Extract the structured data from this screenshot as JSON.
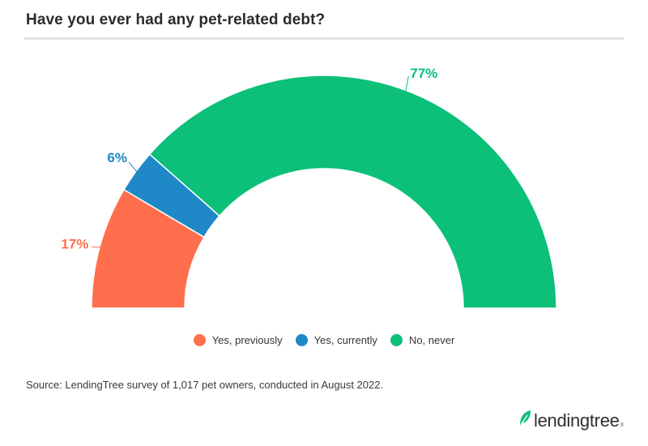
{
  "title": "Have you ever had any pet-related debt?",
  "chart_data": {
    "type": "pie",
    "subtype": "semi-donut",
    "categories": [
      "Yes, previously",
      "Yes, currently",
      "No, never"
    ],
    "values": [
      17,
      6,
      77
    ],
    "labels": [
      "17%",
      "6%",
      "77%"
    ],
    "colors": [
      "#ff6f4d",
      "#1f88c6",
      "#0cc079"
    ],
    "legend_position": "bottom-center"
  },
  "source": "Source: LendingTree survey of 1,017 pet owners, conducted in August 2022.",
  "logo": {
    "text": "lendingtree",
    "tm": "®",
    "leaf_color": "#0cc079"
  }
}
